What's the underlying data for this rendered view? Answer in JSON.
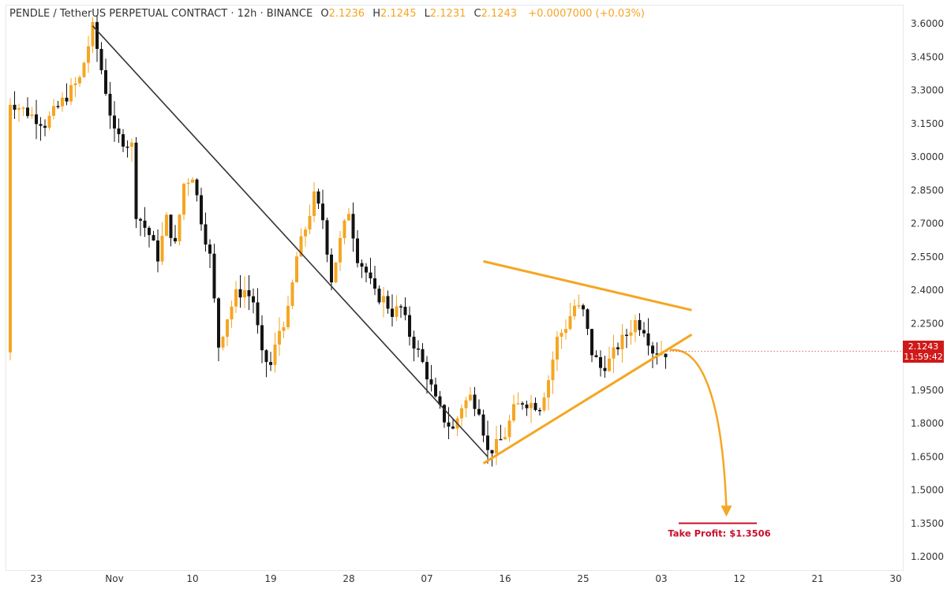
{
  "header": {
    "symbol": "PENDLE / TetherUS PERPETUAL CONTRACT · 12h · BINANCE",
    "o_label": "O",
    "o_value": "2.1236",
    "h_label": "H",
    "h_value": "2.1245",
    "l_label": "L",
    "l_value": "2.1231",
    "c_label": "C",
    "c_value": "2.1243",
    "change": "+0.0007000 (+0.03%)"
  },
  "price_badge": {
    "price": "2.1243",
    "countdown": "11:59:42"
  },
  "colors": {
    "up": "#f5a623",
    "down": "#131313",
    "trend": "#333333",
    "triangle": "#f5a623",
    "target": "#c8102e",
    "badge": "#d01919"
  },
  "chart_data": {
    "type": "candlestick",
    "title": "PENDLE / TetherUS PERPETUAL CONTRACT · 12h · BINANCE",
    "y_axis": {
      "min": 1.2,
      "max": 3.6,
      "ticks": [
        "3.6000",
        "3.4500",
        "3.3000",
        "3.1500",
        "3.0000",
        "2.8500",
        "2.7000",
        "2.5500",
        "2.4000",
        "2.2500",
        "2.1000",
        "1.9500",
        "1.8000",
        "1.6500",
        "1.5000",
        "1.3500",
        "1.2000"
      ]
    },
    "x_axis": {
      "ticks": [
        {
          "label": "23",
          "day": 0
        },
        {
          "label": "Nov",
          "day": 9
        },
        {
          "label": "10",
          "day": 18
        },
        {
          "label": "19",
          "day": 27
        },
        {
          "label": "28",
          "day": 36
        },
        {
          "label": "07",
          "day": 45
        },
        {
          "label": "16",
          "day": 54
        },
        {
          "label": "25",
          "day": 63
        },
        {
          "label": "03",
          "day": 72
        },
        {
          "label": "12",
          "day": 81
        },
        {
          "label": "21",
          "day": 90
        },
        {
          "label": "30",
          "day": 99
        }
      ]
    },
    "waypoints": [
      [
        -3,
        3.25
      ],
      [
        1,
        3.15
      ],
      [
        5,
        3.35
      ],
      [
        6.5,
        3.58
      ],
      [
        8,
        3.3
      ],
      [
        9,
        3.1
      ],
      [
        11,
        3.05
      ],
      [
        11.5,
        2.75
      ],
      [
        13,
        2.65
      ],
      [
        14,
        2.55
      ],
      [
        15,
        2.72
      ],
      [
        16,
        2.6
      ],
      [
        17,
        2.88
      ],
      [
        18,
        2.92
      ],
      [
        19,
        2.72
      ],
      [
        20,
        2.55
      ],
      [
        21,
        2.15
      ],
      [
        22,
        2.28
      ],
      [
        23,
        2.38
      ],
      [
        24,
        2.4
      ],
      [
        25,
        2.35
      ],
      [
        26,
        2.1
      ],
      [
        27,
        2.06
      ],
      [
        28,
        2.22
      ],
      [
        29,
        2.3
      ],
      [
        30,
        2.55
      ],
      [
        31,
        2.68
      ],
      [
        32,
        2.82
      ],
      [
        33,
        2.72
      ],
      [
        34,
        2.45
      ],
      [
        35,
        2.62
      ],
      [
        36,
        2.76
      ],
      [
        37,
        2.55
      ],
      [
        38,
        2.48
      ],
      [
        39,
        2.38
      ],
      [
        40,
        2.36
      ],
      [
        41,
        2.3
      ],
      [
        42,
        2.32
      ],
      [
        43,
        2.2
      ],
      [
        44,
        2.12
      ],
      [
        45,
        2.02
      ],
      [
        46,
        1.9
      ],
      [
        47,
        1.82
      ],
      [
        48,
        1.77
      ],
      [
        49,
        1.88
      ],
      [
        50,
        1.92
      ],
      [
        51,
        1.87
      ],
      [
        52,
        1.67
      ],
      [
        53,
        1.7
      ],
      [
        54,
        1.75
      ],
      [
        55,
        1.86
      ],
      [
        56,
        1.9
      ],
      [
        57,
        1.89
      ],
      [
        58,
        1.88
      ],
      [
        59,
        2.0
      ],
      [
        60,
        2.18
      ],
      [
        61,
        2.24
      ],
      [
        62,
        2.33
      ],
      [
        63,
        2.3
      ],
      [
        64,
        2.12
      ],
      [
        65,
        2.05
      ],
      [
        66,
        2.08
      ],
      [
        67,
        2.15
      ],
      [
        68,
        2.2
      ],
      [
        69,
        2.26
      ],
      [
        70,
        2.23
      ],
      [
        71,
        2.13
      ],
      [
        72,
        2.12
      ]
    ],
    "trend_line": {
      "from": [
        6.5,
        3.59
      ],
      "to": [
        52,
        1.65
      ]
    },
    "triangle_upper": {
      "from": [
        51.5,
        2.53
      ],
      "to": [
        75.5,
        2.31
      ]
    },
    "triangle_lower": {
      "from": [
        51.5,
        1.62
      ],
      "to": [
        75.5,
        2.2
      ]
    },
    "projection": {
      "from": [
        73,
        2.13
      ],
      "to": [
        79.5,
        1.38
      ]
    },
    "take_profit": {
      "label": "Take Profit: $1.3506",
      "price": 1.3506,
      "from_day": 74,
      "to_day": 83
    },
    "last_price": 2.1243
  }
}
